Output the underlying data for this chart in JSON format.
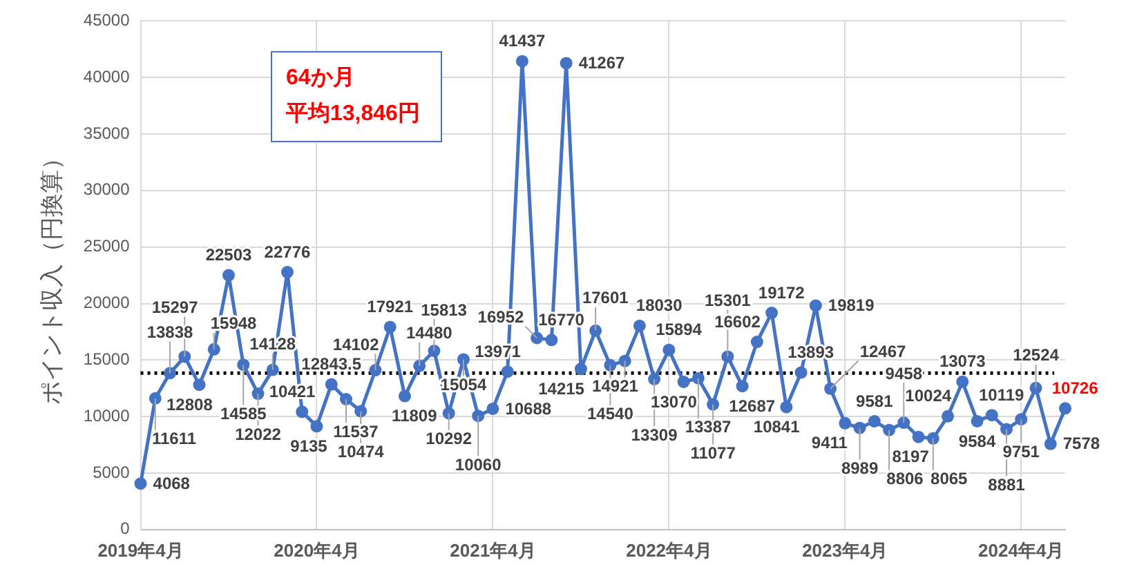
{
  "chart_data": {
    "type": "line",
    "ylabel": "ポイント収入（円換算）",
    "categories": [
      "2019年4月",
      null,
      null,
      null,
      null,
      null,
      null,
      null,
      null,
      null,
      null,
      null,
      "2020年4月",
      null,
      null,
      null,
      null,
      null,
      null,
      null,
      null,
      null,
      null,
      null,
      "2021年4月",
      null,
      null,
      null,
      null,
      null,
      null,
      null,
      null,
      null,
      null,
      null,
      "2022年4月",
      null,
      null,
      null,
      null,
      null,
      null,
      null,
      null,
      null,
      null,
      null,
      "2023年4月",
      null,
      null,
      null,
      null,
      null,
      null,
      null,
      null,
      null,
      null,
      null,
      "2024年4月",
      null,
      null,
      null
    ],
    "series": [
      {
        "color": "#4472c4",
        "values": [
          4068,
          11611,
          13838,
          15297,
          12808,
          15948,
          22503,
          14585,
          12022,
          14128,
          22776,
          10421,
          9135,
          12843.5,
          11537,
          10474,
          14102,
          17921,
          11809,
          14480,
          15813,
          10292,
          15054,
          10060,
          10688,
          13971,
          41437,
          16952,
          16770,
          41267,
          14215,
          17601,
          14540,
          14921,
          18030,
          13309,
          15894,
          13070,
          13387,
          11077,
          15301,
          12687,
          16602,
          19172,
          10841,
          13893,
          19819,
          12467,
          9411,
          8989,
          9581,
          8806,
          9458,
          8197,
          8065,
          10024,
          13073,
          9584,
          10119,
          8881,
          9751,
          12524,
          7578,
          10726
        ]
      }
    ],
    "ylim": [
      0,
      45000
    ],
    "yticks": [
      0,
      5000,
      10000,
      15000,
      20000,
      25000,
      30000,
      35000,
      40000,
      45000
    ],
    "grid": true,
    "marker": "circle",
    "line_style": "solid",
    "data_labels": true,
    "ref_lines": [
      {
        "axis": "y",
        "value": 13846,
        "color": "#000000",
        "line_style": "dotted"
      }
    ],
    "annotations": [
      "64か月",
      "平均13,846円"
    ]
  }
}
